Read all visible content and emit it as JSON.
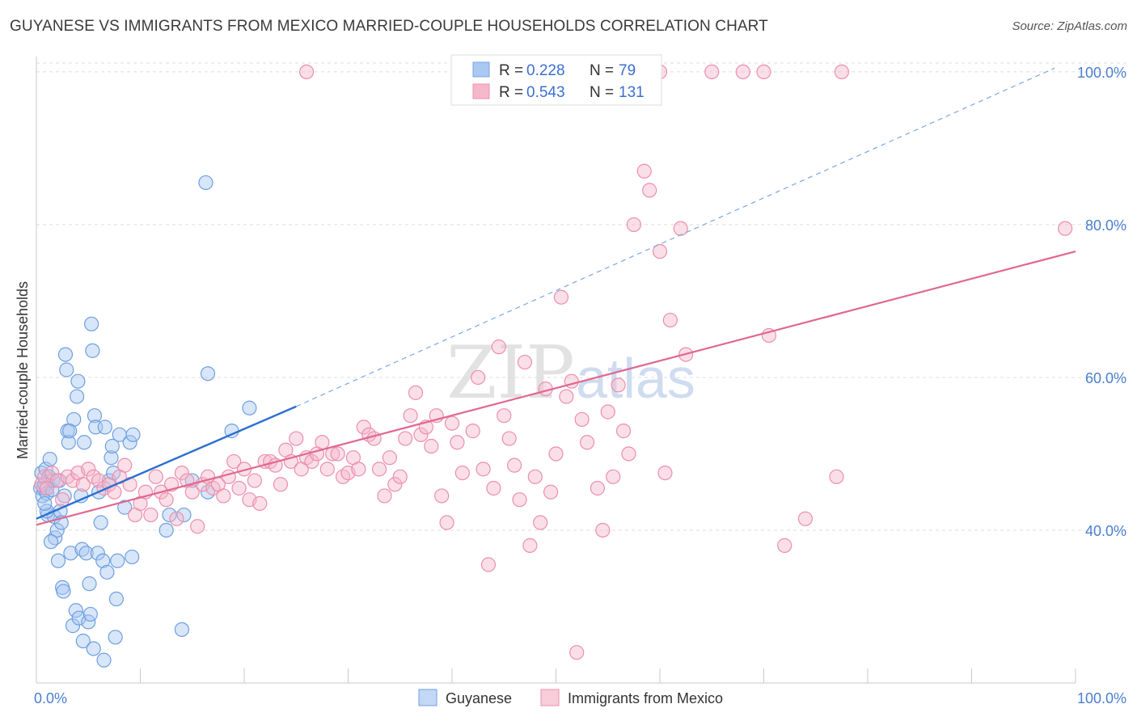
{
  "title": "GUYANESE VS IMMIGRANTS FROM MEXICO MARRIED-COUPLE HOUSEHOLDS CORRELATION CHART",
  "source": "Source: ZipAtlas.com",
  "watermark": {
    "zip": "ZIP",
    "atlas": "atlas"
  },
  "chart_data": {
    "type": "scatter",
    "xlabel": "",
    "ylabel": "Married-couple Households",
    "xlim": [
      0,
      100
    ],
    "ylim": [
      20,
      102
    ],
    "x_tick_labels": [
      "0.0%",
      "100.0%"
    ],
    "y_ticks": [
      40,
      60,
      80,
      100
    ],
    "y_tick_labels": [
      "40.0%",
      "60.0%",
      "80.0%",
      "100.0%"
    ],
    "grid": true,
    "legend_top": [
      {
        "r_label": "R = ",
        "r_value": "0.228",
        "n_label": "N = ",
        "n_value": "79",
        "color": "#a9c8f2"
      },
      {
        "r_label": "R = ",
        "r_value": "0.543",
        "n_label": "N = ",
        "n_value": "131",
        "color": "#f5b8cb"
      }
    ],
    "series": [
      {
        "name": "Guyanese",
        "color": "#a9c8f2",
        "stroke": "#6f9fe0",
        "trend": {
          "x0": 0,
          "y0": 41.5,
          "x1": 25,
          "y1": 56.2,
          "color": "#2a6fd0"
        },
        "trend_ext": {
          "x0": 25,
          "y0": 56.2,
          "x1": 98,
          "y1": 100.5
        },
        "points": [
          [
            0.4,
            45.5
          ],
          [
            0.5,
            47.5
          ],
          [
            0.6,
            44.5
          ],
          [
            0.7,
            45.5
          ],
          [
            0.8,
            46
          ],
          [
            0.9,
            48
          ],
          [
            1.0,
            44.8
          ],
          [
            1.1,
            42
          ],
          [
            1.2,
            47
          ],
          [
            1.3,
            49.3
          ],
          [
            1.5,
            45.3
          ],
          [
            1.6,
            46.5
          ],
          [
            1.7,
            41.8
          ],
          [
            1.8,
            39
          ],
          [
            2.0,
            40
          ],
          [
            2.1,
            36
          ],
          [
            2.3,
            42.5
          ],
          [
            2.4,
            41
          ],
          [
            2.5,
            32.5
          ],
          [
            2.6,
            32
          ],
          [
            2.2,
            46.5
          ],
          [
            2.8,
            63
          ],
          [
            2.9,
            61
          ],
          [
            3.0,
            53
          ],
          [
            3.1,
            51.5
          ],
          [
            3.3,
            37
          ],
          [
            3.5,
            27.5
          ],
          [
            3.6,
            54.5
          ],
          [
            3.8,
            29.5
          ],
          [
            3.9,
            57.5
          ],
          [
            4.0,
            59.5
          ],
          [
            4.1,
            28.5
          ],
          [
            4.3,
            44.5
          ],
          [
            4.4,
            37.5
          ],
          [
            4.5,
            25.5
          ],
          [
            4.6,
            51.5
          ],
          [
            4.8,
            37
          ],
          [
            5.0,
            28
          ],
          [
            5.1,
            33
          ],
          [
            5.2,
            29
          ],
          [
            5.3,
            67
          ],
          [
            5.4,
            63.5
          ],
          [
            5.5,
            24.5
          ],
          [
            5.6,
            55
          ],
          [
            5.7,
            53.5
          ],
          [
            5.9,
            37
          ],
          [
            6.2,
            41
          ],
          [
            6.4,
            36
          ],
          [
            6.5,
            23
          ],
          [
            6.6,
            53.5
          ],
          [
            6.8,
            34.5
          ],
          [
            7.0,
            46.5
          ],
          [
            7.2,
            49.5
          ],
          [
            7.3,
            51
          ],
          [
            7.4,
            47.5
          ],
          [
            7.6,
            26
          ],
          [
            7.7,
            31
          ],
          [
            7.8,
            36
          ],
          [
            8.0,
            52.5
          ],
          [
            8.5,
            43
          ],
          [
            9.0,
            51.5
          ],
          [
            9.2,
            36.5
          ],
          [
            9.3,
            52.5
          ],
          [
            12.5,
            40
          ],
          [
            12.8,
            42
          ],
          [
            14.0,
            27
          ],
          [
            14.2,
            42
          ],
          [
            15.0,
            46.5
          ],
          [
            16.5,
            45
          ],
          [
            16.3,
            85.5
          ],
          [
            16.5,
            60.5
          ],
          [
            18.8,
            53
          ],
          [
            20.5,
            56
          ],
          [
            1.0,
            42.5
          ],
          [
            3.2,
            53
          ],
          [
            1.4,
            38.5
          ],
          [
            0.8,
            43.5
          ],
          [
            2.7,
            44.5
          ],
          [
            6.0,
            45
          ]
        ]
      },
      {
        "name": "Immigrants from Mexico",
        "color": "#f5b8cb",
        "stroke": "#ec8fab",
        "trend": {
          "x0": 0,
          "y0": 40.7,
          "x1": 100,
          "y1": 76.5,
          "color": "#e06890"
        },
        "points": [
          [
            0.5,
            46
          ],
          [
            0.8,
            47
          ],
          [
            1.0,
            45.5
          ],
          [
            1.5,
            47.5
          ],
          [
            2.0,
            46.5
          ],
          [
            2.5,
            44
          ],
          [
            3.0,
            47
          ],
          [
            3.5,
            46.5
          ],
          [
            4.0,
            47.5
          ],
          [
            4.5,
            46
          ],
          [
            5.0,
            48
          ],
          [
            5.5,
            47
          ],
          [
            6.0,
            46.5
          ],
          [
            6.5,
            45.5
          ],
          [
            7.0,
            46
          ],
          [
            7.5,
            45
          ],
          [
            8.0,
            47
          ],
          [
            8.5,
            48.5
          ],
          [
            9.0,
            46
          ],
          [
            9.5,
            42
          ],
          [
            10.0,
            43.5
          ],
          [
            10.5,
            45
          ],
          [
            11.0,
            42
          ],
          [
            11.5,
            47
          ],
          [
            12.0,
            45
          ],
          [
            12.5,
            44
          ],
          [
            13.0,
            46
          ],
          [
            13.5,
            41.5
          ],
          [
            14.0,
            47.5
          ],
          [
            14.5,
            46.5
          ],
          [
            15.0,
            45
          ],
          [
            15.5,
            40.5
          ],
          [
            16.0,
            46
          ],
          [
            16.5,
            47
          ],
          [
            17.0,
            45.5
          ],
          [
            17.5,
            46
          ],
          [
            18.0,
            44.5
          ],
          [
            18.5,
            47
          ],
          [
            19.0,
            49
          ],
          [
            19.5,
            45.5
          ],
          [
            20.0,
            48
          ],
          [
            20.5,
            44
          ],
          [
            21.0,
            46.5
          ],
          [
            21.5,
            43.5
          ],
          [
            22.0,
            49
          ],
          [
            22.5,
            49
          ],
          [
            23.0,
            48.5
          ],
          [
            23.5,
            46
          ],
          [
            24.0,
            50.5
          ],
          [
            24.5,
            49
          ],
          [
            25.0,
            52
          ],
          [
            25.5,
            48
          ],
          [
            26.0,
            49.5
          ],
          [
            26.5,
            49
          ],
          [
            27.0,
            50
          ],
          [
            27.5,
            51.5
          ],
          [
            28.0,
            48
          ],
          [
            28.5,
            50
          ],
          [
            29.0,
            50
          ],
          [
            29.5,
            47
          ],
          [
            30.0,
            47.5
          ],
          [
            30.5,
            49.5
          ],
          [
            31.0,
            48
          ],
          [
            31.5,
            53.5
          ],
          [
            32.0,
            52.5
          ],
          [
            32.5,
            52
          ],
          [
            33.0,
            48
          ],
          [
            33.5,
            44.5
          ],
          [
            34.0,
            49.5
          ],
          [
            34.5,
            46
          ],
          [
            35.0,
            47
          ],
          [
            35.5,
            52
          ],
          [
            36.0,
            55
          ],
          [
            36.5,
            58
          ],
          [
            37.0,
            52.5
          ],
          [
            37.5,
            53.5
          ],
          [
            38.0,
            51
          ],
          [
            38.5,
            55
          ],
          [
            39.0,
            44.5
          ],
          [
            39.5,
            41
          ],
          [
            40.0,
            54
          ],
          [
            40.5,
            51.5
          ],
          [
            41.0,
            47.5
          ],
          [
            42.0,
            53
          ],
          [
            42.5,
            60
          ],
          [
            43.0,
            48
          ],
          [
            43.5,
            35.5
          ],
          [
            44.0,
            45.5
          ],
          [
            44.5,
            64
          ],
          [
            45.0,
            55
          ],
          [
            45.5,
            52
          ],
          [
            46.0,
            48.5
          ],
          [
            46.5,
            44
          ],
          [
            47.0,
            62
          ],
          [
            47.5,
            38
          ],
          [
            48.0,
            47
          ],
          [
            48.5,
            41
          ],
          [
            49.0,
            58.5
          ],
          [
            49.5,
            45
          ],
          [
            50.0,
            50
          ],
          [
            50.5,
            70.5
          ],
          [
            51.0,
            57.5
          ],
          [
            51.5,
            59.5
          ],
          [
            52.0,
            24
          ],
          [
            52.5,
            54.5
          ],
          [
            53.0,
            51.5
          ],
          [
            54.0,
            45.5
          ],
          [
            54.5,
            40
          ],
          [
            55.0,
            55.5
          ],
          [
            55.5,
            47
          ],
          [
            56.0,
            59
          ],
          [
            56.5,
            53
          ],
          [
            57.0,
            50
          ],
          [
            57.5,
            80
          ],
          [
            58.5,
            87
          ],
          [
            59.0,
            84.5
          ],
          [
            60.0,
            76.5
          ],
          [
            60.5,
            47.5
          ],
          [
            61.0,
            67.5
          ],
          [
            62.0,
            79.5
          ],
          [
            62.5,
            63
          ],
          [
            65.0,
            100
          ],
          [
            68.0,
            100
          ],
          [
            70.0,
            100
          ],
          [
            70.5,
            65.5
          ],
          [
            72.0,
            38
          ],
          [
            74.0,
            41.5
          ],
          [
            77.5,
            100
          ],
          [
            77.0,
            47
          ],
          [
            99.0,
            79.5
          ],
          [
            60.0,
            100
          ],
          [
            58.5,
            100
          ],
          [
            26.0,
            100
          ]
        ]
      }
    ]
  }
}
